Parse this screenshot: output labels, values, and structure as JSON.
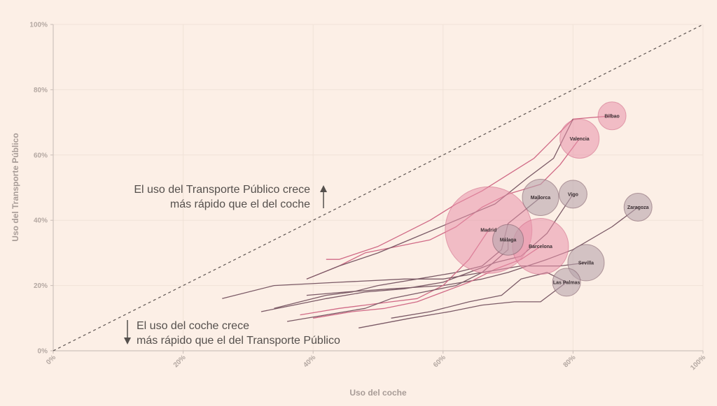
{
  "chart_data": {
    "type": "scatter",
    "xlabel": "Uso del coche",
    "ylabel": "Uso del Transporte Público",
    "xlim": [
      0,
      100
    ],
    "ylim": [
      0,
      100
    ],
    "ticks": [
      "0%",
      "20%",
      "40%",
      "60%",
      "80%",
      "100%"
    ],
    "grid": true,
    "reference_line": "y = x (dashed)",
    "annotations": [
      {
        "lines": [
          "El uso del Transporte Público crece",
          "más rápido que el del coche"
        ],
        "arrow": "up"
      },
      {
        "lines": [
          "El uso del coche crece",
          "más rápido que el del Transporte Público"
        ],
        "arrow": "down"
      }
    ],
    "colors": {
      "pink_series": "#d06a86",
      "gray_series": "#7b5a66",
      "pink_fill": "#e891a9",
      "gray_fill": "#b8a4ab"
    },
    "series": [
      {
        "name": "Bilbao",
        "color": "pink",
        "bubble_size": 20,
        "points": [
          [
            42,
            28
          ],
          [
            44,
            28
          ],
          [
            47,
            30
          ],
          [
            50,
            32
          ],
          [
            54,
            36
          ],
          [
            58,
            40
          ],
          [
            62,
            45
          ],
          [
            66,
            49
          ],
          [
            70,
            54
          ],
          [
            74,
            59
          ],
          [
            76,
            63
          ],
          [
            78,
            67
          ],
          [
            80,
            71
          ],
          [
            86,
            72
          ]
        ]
      },
      {
        "name": "Valencia",
        "color": "pink",
        "bubble_size": 28,
        "points": [
          [
            39,
            22
          ],
          [
            44,
            26
          ],
          [
            48,
            30
          ],
          [
            53,
            32
          ],
          [
            58,
            34
          ],
          [
            62,
            38
          ],
          [
            66,
            44
          ],
          [
            70,
            48
          ],
          [
            75,
            51
          ],
          [
            78,
            57
          ],
          [
            81,
            65
          ]
        ]
      },
      {
        "name": "Mallorca",
        "color": "gray",
        "bubble_size": 26,
        "points": [
          [
            34,
            13
          ],
          [
            38,
            15
          ],
          [
            42,
            17
          ],
          [
            46,
            18
          ],
          [
            50,
            20
          ],
          [
            56,
            22
          ],
          [
            62,
            24
          ],
          [
            66,
            26
          ],
          [
            69,
            31
          ],
          [
            70,
            39
          ],
          [
            75,
            47
          ]
        ]
      },
      {
        "name": "Vigo",
        "color": "gray",
        "bubble_size": 20,
        "points": [
          [
            32,
            12
          ],
          [
            37,
            14
          ],
          [
            42,
            16
          ],
          [
            48,
            18
          ],
          [
            54,
            19
          ],
          [
            60,
            21
          ],
          [
            64,
            24
          ],
          [
            68,
            27
          ],
          [
            72,
            29
          ],
          [
            76,
            36
          ],
          [
            80,
            48
          ]
        ]
      },
      {
        "name": "Zaragoza",
        "color": "gray",
        "bubble_size": 20,
        "points": [
          [
            39,
            17
          ],
          [
            45,
            18
          ],
          [
            52,
            19
          ],
          [
            60,
            20
          ],
          [
            66,
            22
          ],
          [
            70,
            24
          ],
          [
            76,
            28
          ],
          [
            80,
            31
          ],
          [
            86,
            38
          ],
          [
            90,
            44
          ]
        ]
      },
      {
        "name": "Madrid",
        "color": "pink",
        "bubble_size": 62,
        "points": [
          [
            38,
            11
          ],
          [
            41,
            12
          ],
          [
            44,
            13
          ],
          [
            48,
            14
          ],
          [
            52,
            15
          ],
          [
            56,
            16
          ],
          [
            60,
            20
          ],
          [
            64,
            28
          ],
          [
            67,
            37
          ]
        ]
      },
      {
        "name": "Málaga",
        "color": "gray",
        "bubble_size": 22,
        "points": [
          [
            36,
            9
          ],
          [
            42,
            11
          ],
          [
            48,
            13
          ],
          [
            52,
            16
          ],
          [
            57,
            18
          ],
          [
            62,
            20
          ],
          [
            66,
            24
          ],
          [
            70,
            31
          ],
          [
            70,
            34
          ]
        ]
      },
      {
        "name": "Barcelona",
        "color": "pink",
        "bubble_size": 40,
        "points": [
          [
            40,
            10
          ],
          [
            46,
            12
          ],
          [
            51,
            13
          ],
          [
            56,
            15
          ],
          [
            60,
            18
          ],
          [
            64,
            21
          ],
          [
            68,
            25
          ],
          [
            72,
            28
          ],
          [
            75,
            32
          ]
        ]
      },
      {
        "name": "Sevilla",
        "color": "gray",
        "bubble_size": 26,
        "points": [
          [
            26,
            16
          ],
          [
            34,
            20
          ],
          [
            44,
            21
          ],
          [
            54,
            22
          ],
          [
            60,
            22
          ],
          [
            66,
            24
          ],
          [
            72,
            26
          ],
          [
            78,
            26
          ],
          [
            82,
            27
          ]
        ]
      },
      {
        "name": "Las Palmas",
        "color": "gray",
        "bubble_size": 20,
        "points": [
          [
            52,
            10
          ],
          [
            58,
            12
          ],
          [
            64,
            15
          ],
          [
            69,
            17
          ],
          [
            72,
            22
          ],
          [
            76,
            24
          ],
          [
            79,
            21
          ]
        ]
      },
      {
        "name": "",
        "color": "gray",
        "bubble_size": 0,
        "points": [
          [
            47,
            7
          ],
          [
            55,
            10
          ],
          [
            61,
            12
          ],
          [
            66,
            14
          ],
          [
            71,
            15
          ],
          [
            75,
            15
          ],
          [
            79,
            21
          ]
        ]
      },
      {
        "name": "",
        "color": "gray",
        "bubble_size": 0,
        "points": [
          [
            39,
            22
          ],
          [
            44,
            26
          ],
          [
            50,
            30
          ],
          [
            56,
            35
          ],
          [
            62,
            40
          ],
          [
            68,
            45
          ],
          [
            73,
            53
          ],
          [
            77,
            59
          ],
          [
            80,
            71
          ]
        ]
      }
    ]
  }
}
